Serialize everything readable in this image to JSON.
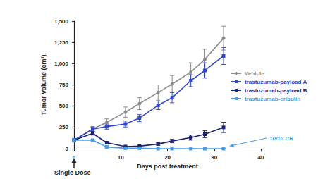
{
  "chart_data": {
    "type": "line",
    "x_label": "Days post treatment",
    "y_label": "Tumor Volume (cm³)",
    "xlim": [
      0,
      40
    ],
    "xticks": [
      0,
      10,
      20,
      30,
      40
    ],
    "ylim": [
      0,
      1500
    ],
    "yticks": [
      0,
      250,
      500,
      750,
      1000,
      1250,
      1500
    ],
    "grid": false,
    "legend": "right",
    "series": [
      {
        "name": "Vehicle",
        "color": "#8c8c8c",
        "marker": "circle",
        "x": [
          0,
          4,
          7,
          11,
          14,
          18,
          21,
          25,
          28,
          32
        ],
        "values": [
          100,
          230,
          310,
          430,
          530,
          660,
          760,
          900,
          1050,
          1300
        ],
        "errors": [
          10,
          30,
          40,
          60,
          70,
          90,
          100,
          110,
          120,
          140
        ]
      },
      {
        "name": "trastuzumab-payload A",
        "color": "#2f45d6",
        "marker": "square",
        "x": [
          0,
          4,
          7,
          11,
          14,
          18,
          21,
          25,
          28,
          32
        ],
        "values": [
          100,
          230,
          260,
          290,
          360,
          510,
          600,
          800,
          920,
          1090
        ],
        "errors": [
          10,
          25,
          30,
          35,
          40,
          50,
          60,
          70,
          90,
          100
        ]
      },
      {
        "name": "trastuzumab-payload B",
        "color": "#1c2270",
        "marker": "square",
        "x": [
          0,
          4,
          7,
          11,
          14,
          18,
          21,
          25,
          28,
          32
        ],
        "values": [
          100,
          180,
          70,
          25,
          30,
          55,
          90,
          130,
          170,
          250
        ],
        "errors": [
          10,
          20,
          15,
          8,
          10,
          15,
          20,
          30,
          40,
          60
        ]
      },
      {
        "name": "trastuzumab-eribulin",
        "color": "#4a9ee8",
        "marker": "square",
        "x": [
          0,
          4,
          7,
          11,
          14,
          18,
          21,
          25,
          28,
          32
        ],
        "values": [
          100,
          100,
          20,
          5,
          5,
          0,
          0,
          0,
          0,
          0
        ],
        "errors": [
          10,
          10,
          5,
          2,
          2,
          0,
          0,
          0,
          0,
          0
        ]
      }
    ],
    "annotations": [
      {
        "text": "10/10 CR",
        "color": "#4a9ee8"
      },
      {
        "text": "Single Dose",
        "color": "#222222"
      }
    ]
  }
}
